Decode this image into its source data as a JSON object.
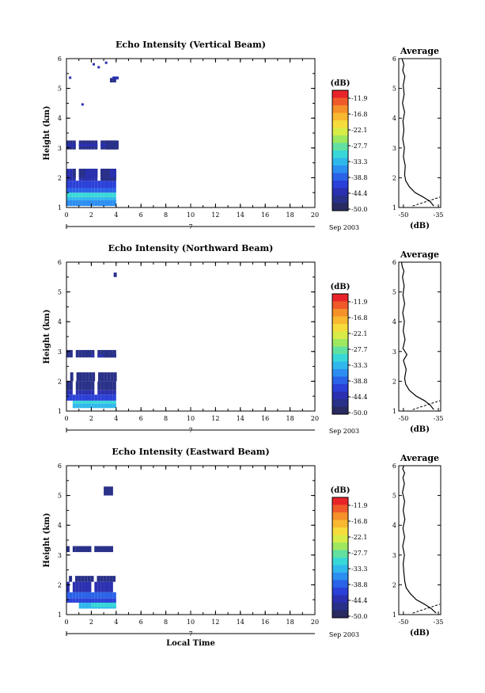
{
  "colorbar": {
    "unit": "(dB)",
    "ticks": [
      "-11.9",
      "-16.8",
      "-22.1",
      "-27.7",
      "-33.3",
      "-38.8",
      "-44.4",
      "-50.0"
    ],
    "colors": [
      "#e8242a",
      "#f05a2a",
      "#f5902a",
      "#f8b830",
      "#f6dc3a",
      "#d8ec48",
      "#9ee860",
      "#62e0a0",
      "#38d8d8",
      "#30b8ec",
      "#2c8ef0",
      "#2a62e8",
      "#2a40d8",
      "#2a30b0",
      "#283088",
      "#282a60"
    ]
  },
  "time_axis": {
    "ticks": [
      "0",
      "2",
      "4",
      "6",
      "8",
      "10",
      "12",
      "14",
      "16",
      "18",
      "20"
    ],
    "date_label": "Sep 2003",
    "date_marker": "7",
    "xlabel": "Local Time"
  },
  "avg_axis": {
    "xticks": [
      "-50",
      "-35"
    ],
    "xlabel": "(dB)",
    "title": "Average"
  },
  "chart_data": [
    {
      "type": "heatmap",
      "title": "Echo Intensity (Vertical Beam)",
      "ylabel": "Height (km)",
      "xlim": [
        0,
        20
      ],
      "ylim": [
        1,
        6
      ],
      "yticks": [
        "1",
        "2",
        "3",
        "4",
        "5",
        "6"
      ],
      "profile": {
        "type": "line",
        "title": "Average",
        "xlabel": "(dB)",
        "xlim": [
          -52,
          -34
        ],
        "ylim": [
          1,
          6
        ],
        "x": [
          -37,
          -38.5,
          -41.5,
          -45,
          -47.5,
          -49,
          -49.5,
          -49.2,
          -50,
          -49.6,
          -50.3,
          -49.8,
          -50.2,
          -49.5,
          -50.4,
          -49.7,
          -50.1,
          -49.4,
          -50.3,
          -49.8,
          -50.2,
          -50.6
        ],
        "y": [
          1.05,
          1.2,
          1.35,
          1.5,
          1.7,
          1.9,
          2.1,
          2.4,
          2.7,
          3.0,
          3.3,
          3.6,
          3.9,
          4.2,
          4.5,
          4.8,
          5.1,
          5.4,
          5.6,
          5.8,
          5.9,
          6.0
        ]
      }
    },
    {
      "type": "heatmap",
      "title": "Echo Intensity (Northward Beam)",
      "ylabel": "Height (km)",
      "xlim": [
        0,
        20
      ],
      "ylim": [
        1,
        6
      ],
      "yticks": [
        "1",
        "2",
        "3",
        "4",
        "5",
        "6"
      ],
      "profile": {
        "type": "line",
        "title": "Average",
        "xlabel": "(dB)",
        "xlim": [
          -52,
          -34
        ],
        "ylim": [
          1,
          6
        ],
        "x": [
          -37,
          -38.5,
          -41,
          -44.5,
          -47.5,
          -49,
          -49.5,
          -48.8,
          -50,
          -48.5,
          -50.2,
          -49.3,
          -50.1,
          -49.6,
          -50.3,
          -49.5,
          -50.2,
          -49.7,
          -50.4,
          -49.8,
          -50.5,
          -50.8
        ],
        "y": [
          1.05,
          1.2,
          1.35,
          1.5,
          1.7,
          1.9,
          2.1,
          2.4,
          2.7,
          2.9,
          3.1,
          3.4,
          3.7,
          4.0,
          4.3,
          4.6,
          4.9,
          5.2,
          5.5,
          5.7,
          5.85,
          6.0
        ]
      }
    },
    {
      "type": "heatmap",
      "title": "Echo Intensity (Eastward Beam)",
      "ylabel": "Height (km)",
      "xlim": [
        0,
        20
      ],
      "ylim": [
        1,
        6
      ],
      "yticks": [
        "1",
        "2",
        "3",
        "4",
        "5",
        "6"
      ],
      "profile": {
        "type": "line",
        "title": "Average",
        "xlabel": "(dB)",
        "xlim": [
          -52,
          -34
        ],
        "ylim": [
          1,
          6
        ],
        "x": [
          -36,
          -38,
          -41,
          -44.5,
          -47,
          -48.8,
          -49.4,
          -49.8,
          -50.1,
          -49.6,
          -50.3,
          -49.5,
          -50.2,
          -49.4,
          -50.1,
          -49.5,
          -50.4,
          -49.6,
          -50.2,
          -49.5,
          -50.3,
          -49.8
        ],
        "y": [
          1.05,
          1.2,
          1.35,
          1.5,
          1.7,
          1.9,
          2.1,
          2.4,
          2.7,
          3.0,
          3.3,
          3.6,
          3.9,
          4.2,
          4.5,
          4.8,
          5.1,
          5.4,
          5.6,
          5.75,
          5.9,
          6.0
        ]
      }
    }
  ]
}
